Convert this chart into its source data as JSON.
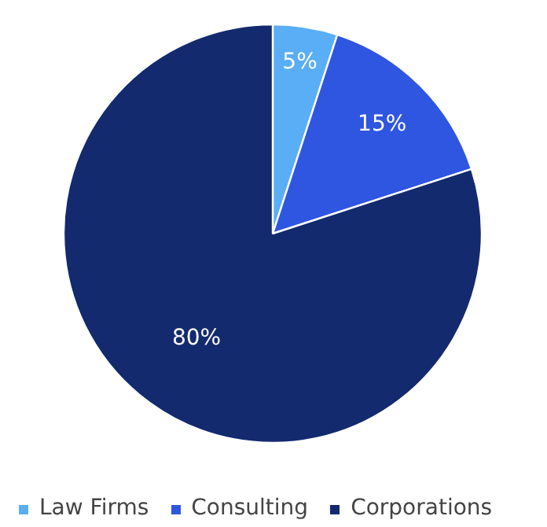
{
  "chart_data": {
    "type": "pie",
    "categories": [
      "Law Firms",
      "Consulting",
      "Corporations"
    ],
    "values": [
      5,
      15,
      80
    ],
    "colors": [
      "#5aaef5",
      "#2f56e0",
      "#132a6e"
    ],
    "value_labels": [
      "5%",
      "15%",
      "80%"
    ],
    "legend": "bottom"
  }
}
